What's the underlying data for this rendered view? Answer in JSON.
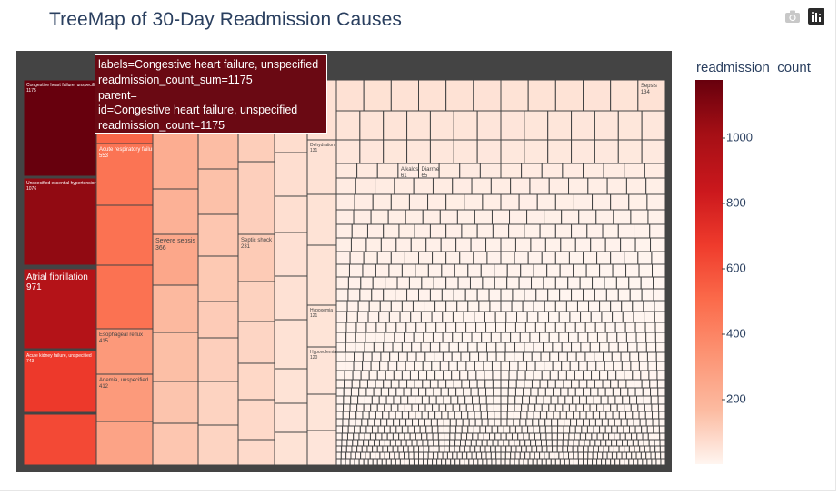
{
  "title": "TreeMap of 30-Day Readmission Causes",
  "modebar": [
    {
      "name": "camera-icon",
      "title": "Download plot as a png"
    },
    {
      "name": "plotly-logo-icon",
      "title": "Produced with Plotly"
    }
  ],
  "colorbar": {
    "title": "readmission_count",
    "range": [
      1,
      1175
    ],
    "ticks": [
      "1000",
      "800",
      "600",
      "400",
      "200"
    ],
    "tick_values": [
      1000,
      800,
      600,
      400,
      200
    ],
    "colorscale": [
      "#fff5f0",
      "#fee0d2",
      "#fcbba1",
      "#fc9272",
      "#fb6a4a",
      "#ef3b2c",
      "#cb181d",
      "#a50f15",
      "#67000d"
    ]
  },
  "tooltip": {
    "line1": "labels=Congestive heart failure, unspecified",
    "line2": "readmission_count_sum=1175",
    "line3": "parent=",
    "line4": "id=Congestive heart failure, unspecified",
    "line5": "readmission_count=1175"
  },
  "chart_data": {
    "type": "treemap",
    "title": "TreeMap of 30-Day Readmission Causes",
    "color_by": "readmission_count",
    "items": [
      {
        "label": "Congestive heart failure, unspecified",
        "value": 1175
      },
      {
        "label": "Unspecified essential hypertension",
        "value": 1076
      },
      {
        "label": "Atrial fibrillation",
        "value": 971
      },
      {
        "label": "Acute kidney failure, unspecified",
        "value": 743
      },
      {
        "label": "Acute respiratory failure",
        "value": 553
      },
      {
        "label": "Esophageal reflux",
        "value": 415
      },
      {
        "label": "Anemia, unspecified",
        "value": 412
      },
      {
        "label": "Severe sepsis",
        "value": 366
      },
      {
        "label": "Acidosis",
        "value": 287
      },
      {
        "label": "Septic shock",
        "value": 231
      },
      {
        "label": "Dehydration",
        "value": 131
      },
      {
        "label": "Sepsis",
        "value": 134
      },
      {
        "label": "Hypoxemia",
        "value": 121
      },
      {
        "label": "Hypovolemia",
        "value": 120
      },
      {
        "label": "Alkalosis",
        "value": 61
      },
      {
        "label": "Diarrhea",
        "value": 65
      }
    ]
  }
}
